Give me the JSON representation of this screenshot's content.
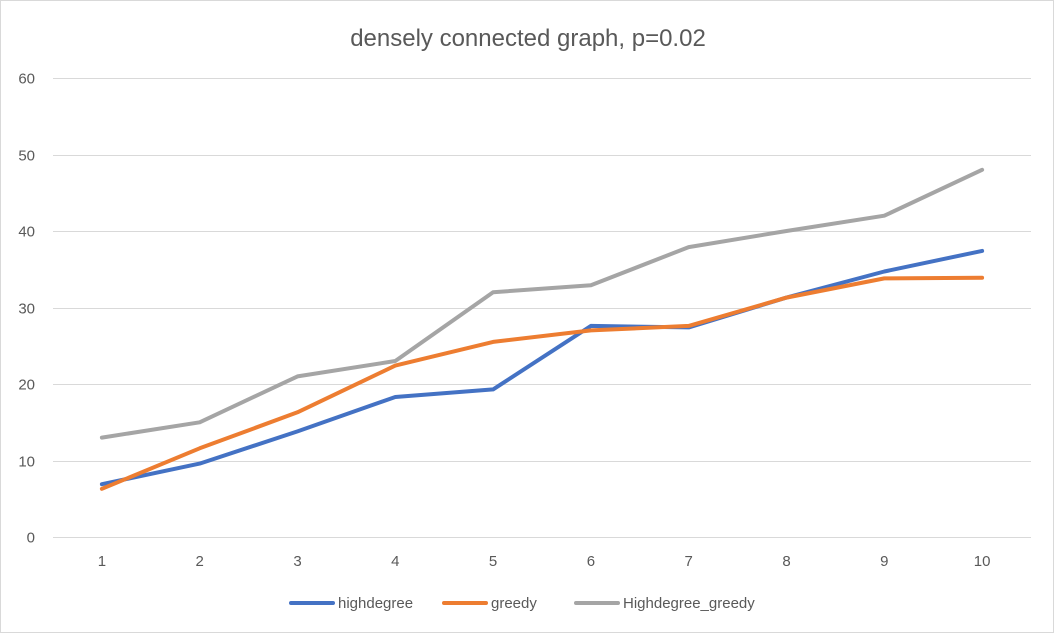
{
  "chart_data": {
    "type": "line",
    "title": "densely connected graph, p=0.02",
    "xlabel": "",
    "ylabel": "",
    "categories": [
      "1",
      "2",
      "3",
      "4",
      "5",
      "6",
      "7",
      "8",
      "9",
      "10"
    ],
    "ylim": [
      0,
      60
    ],
    "yticks": [
      0,
      10,
      20,
      30,
      40,
      50,
      60
    ],
    "grid": true,
    "legend_position": "bottom",
    "series": [
      {
        "name": "highdegree",
        "color": "#4472C4",
        "values": [
          6.9,
          9.6,
          13.8,
          18.3,
          19.3,
          27.6,
          27.4,
          31.3,
          34.7,
          37.4
        ]
      },
      {
        "name": "greedy",
        "color": "#ED7D31",
        "values": [
          6.3,
          11.6,
          16.3,
          22.4,
          25.5,
          27.0,
          27.6,
          31.3,
          33.8,
          33.9
        ]
      },
      {
        "name": "Highdegree_greedy",
        "color": "#A5A5A5",
        "values": [
          13.0,
          15.0,
          21.0,
          23.0,
          32.0,
          32.9,
          37.9,
          40.0,
          42.0,
          48.0
        ]
      }
    ]
  }
}
